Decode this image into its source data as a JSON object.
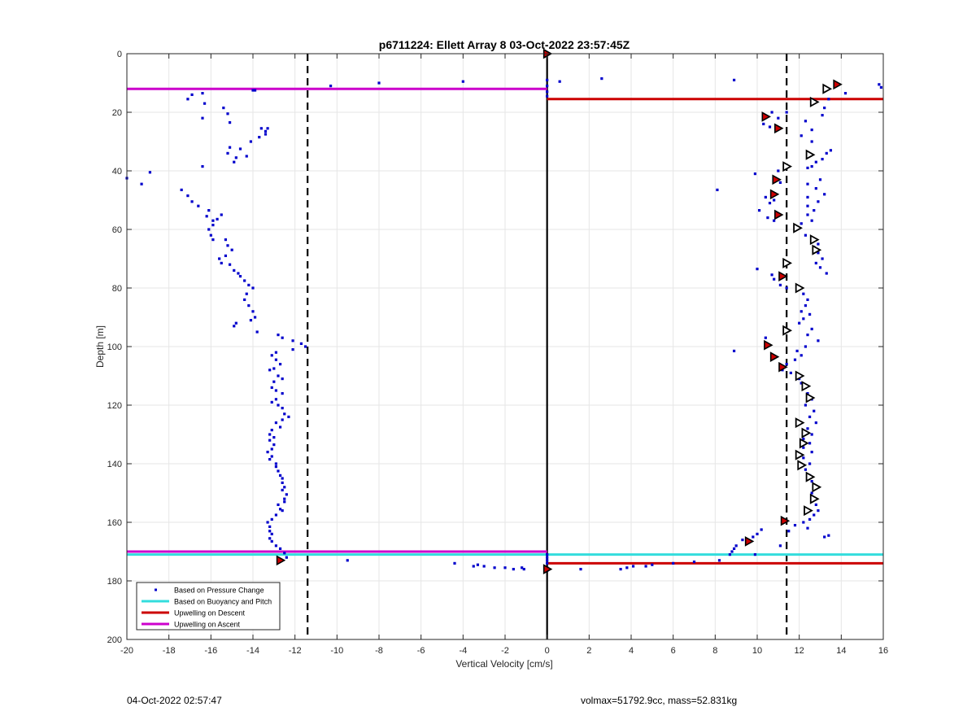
{
  "chart_data": {
    "type": "scatter",
    "title": "p6711224: Ellett Array 8 03-Oct-2022 23:57:45Z",
    "xlabel": "Vertical Velocity [cm/s]",
    "ylabel": "Depth [m]",
    "xlim": [
      -20,
      16
    ],
    "ylim": [
      0,
      200
    ],
    "y_reversed": true,
    "grid": true,
    "xticks": [
      -20,
      -18,
      -16,
      -14,
      -12,
      -10,
      -8,
      -6,
      -4,
      -2,
      0,
      2,
      4,
      6,
      8,
      10,
      12,
      14,
      16
    ],
    "yticks": [
      0,
      20,
      40,
      60,
      80,
      100,
      120,
      140,
      160,
      180,
      200
    ],
    "legend_position": "bottom-left",
    "legend": [
      {
        "label": "Based on Pressure Change",
        "marker": "dot",
        "color": "#0000cc"
      },
      {
        "label": "Based on Buoyancy and Pitch",
        "marker": "line",
        "color": "#33dddd"
      },
      {
        "label": "Upwelling on Descent",
        "marker": "line",
        "color": "#cc0000"
      },
      {
        "label": "Upwelling on Ascent",
        "marker": "line",
        "color": "#cc00cc"
      }
    ],
    "colors": {
      "pressure": "#0000cc",
      "buoyancy": "#33dddd",
      "descent": "#cc0000",
      "ascent": "#cc00cc",
      "dashed": "#000000",
      "grid": "#e6e6e6"
    },
    "vertical_dashed_lines_x": [
      -11.4,
      11.4
    ],
    "zero_line_x": 0,
    "horizontal_lines": [
      {
        "series": "ascent",
        "y": 12,
        "x_from": -20,
        "x_to": 0
      },
      {
        "series": "descent",
        "y": 15.5,
        "x_from": 0,
        "x_to": 16
      },
      {
        "series": "ascent",
        "y": 170,
        "x_from": -20,
        "x_to": 0
      },
      {
        "series": "buoyancy",
        "y": 171,
        "x_from": -20,
        "x_to": 0
      },
      {
        "series": "buoyancy",
        "y": 171,
        "x_from": 0,
        "x_to": 16
      },
      {
        "series": "descent",
        "y": 174,
        "x_from": 0,
        "x_to": 16
      }
    ],
    "pressure_points": [
      [
        -20,
        42.5
      ],
      [
        -19.3,
        44.5
      ],
      [
        -18.9,
        40.5
      ],
      [
        -17.4,
        46.5
      ],
      [
        -17.1,
        48.5
      ],
      [
        -16.9,
        50.5
      ],
      [
        -16.6,
        52
      ],
      [
        -17.1,
        15.5
      ],
      [
        -16.9,
        14
      ],
      [
        -16.4,
        13.5
      ],
      [
        -16.3,
        17
      ],
      [
        -16.4,
        22
      ],
      [
        -15.4,
        18.5
      ],
      [
        -15.2,
        20.5
      ],
      [
        -15.1,
        23.5
      ],
      [
        -15.1,
        32
      ],
      [
        -15.2,
        34
      ],
      [
        -14.8,
        35.5
      ],
      [
        -14.9,
        37
      ],
      [
        -14.6,
        32.5
      ],
      [
        -14.3,
        35
      ],
      [
        -14.1,
        30
      ],
      [
        -13.7,
        28.5
      ],
      [
        -13.6,
        25.5
      ],
      [
        -13.4,
        26.5
      ],
      [
        -13.4,
        27.5
      ],
      [
        -13.3,
        25.5
      ],
      [
        -14.0,
        12.5
      ],
      [
        -16.4,
        38.5
      ],
      [
        -16.1,
        53.5
      ],
      [
        -16.2,
        55.5
      ],
      [
        -15.9,
        57
      ],
      [
        -15.7,
        56.5
      ],
      [
        -15.5,
        55
      ],
      [
        -15.9,
        58.5
      ],
      [
        -16.1,
        60
      ],
      [
        -16.0,
        62
      ],
      [
        -15.9,
        63.5
      ],
      [
        -15.3,
        63.5
      ],
      [
        -15.2,
        65.5
      ],
      [
        -15.0,
        67
      ],
      [
        -15.3,
        69
      ],
      [
        -15.6,
        70
      ],
      [
        -15.5,
        71.5
      ],
      [
        -15.1,
        72
      ],
      [
        -14.9,
        74
      ],
      [
        -14.7,
        75
      ],
      [
        -14.6,
        76
      ],
      [
        -14.4,
        77.5
      ],
      [
        -14.2,
        79
      ],
      [
        -14.0,
        80
      ],
      [
        -14.3,
        82
      ],
      [
        -14.4,
        84
      ],
      [
        -14.2,
        86
      ],
      [
        -14.0,
        88
      ],
      [
        -13.9,
        90
      ],
      [
        -14.1,
        91
      ],
      [
        -14.8,
        92
      ],
      [
        -14.9,
        93
      ],
      [
        -13.8,
        95
      ],
      [
        -12.8,
        96
      ],
      [
        -12.6,
        97
      ],
      [
        -12.1,
        98
      ],
      [
        -11.7,
        99
      ],
      [
        -11.5,
        100
      ],
      [
        -12.1,
        101
      ],
      [
        -12.9,
        102
      ],
      [
        -13.1,
        103
      ],
      [
        -12.9,
        104.5
      ],
      [
        -12.7,
        106
      ],
      [
        -13.0,
        107.5
      ],
      [
        -13.2,
        108
      ],
      [
        -12.8,
        110
      ],
      [
        -12.6,
        111
      ],
      [
        -13.0,
        112
      ],
      [
        -13.1,
        114
      ],
      [
        -12.9,
        115
      ],
      [
        -12.6,
        116
      ],
      [
        -12.9,
        118
      ],
      [
        -13.1,
        119
      ],
      [
        -12.8,
        120
      ],
      [
        -12.6,
        121
      ],
      [
        -12.5,
        123
      ],
      [
        -12.3,
        124
      ],
      [
        -12.6,
        125
      ],
      [
        -12.9,
        126
      ],
      [
        -12.7,
        127.5
      ],
      [
        -13.1,
        128.5
      ],
      [
        -13.2,
        130
      ],
      [
        -13.0,
        131
      ],
      [
        -13.2,
        132
      ],
      [
        -13.0,
        133.5
      ],
      [
        -13.1,
        135
      ],
      [
        -13.3,
        136
      ],
      [
        -13.1,
        137.5
      ],
      [
        -13.2,
        138.5
      ],
      [
        -12.9,
        140
      ],
      [
        -12.9,
        141
      ],
      [
        -12.8,
        142.5
      ],
      [
        -12.7,
        144
      ],
      [
        -12.6,
        145
      ],
      [
        -12.6,
        146.5
      ],
      [
        -12.5,
        148
      ],
      [
        -12.6,
        149
      ],
      [
        -12.4,
        150.5
      ],
      [
        -12.5,
        152
      ],
      [
        -12.5,
        153
      ],
      [
        -12.8,
        154
      ],
      [
        -12.7,
        155.5
      ],
      [
        -12.6,
        156
      ],
      [
        -12.9,
        157.5
      ],
      [
        -13.1,
        159
      ],
      [
        -13.3,
        160
      ],
      [
        -13.2,
        161.5
      ],
      [
        -13.2,
        163
      ],
      [
        -13.1,
        164
      ],
      [
        -13.2,
        165.5
      ],
      [
        -13.1,
        166.5
      ],
      [
        -12.9,
        168
      ],
      [
        -12.7,
        169
      ],
      [
        -12.5,
        170.5
      ],
      [
        -12.4,
        172
      ],
      [
        -12.7,
        173
      ],
      [
        -10.3,
        11
      ],
      [
        -8.0,
        10
      ],
      [
        -4.0,
        9.5
      ],
      [
        -13.9,
        12.5
      ],
      [
        -9.5,
        173
      ],
      [
        -4.4,
        174
      ],
      [
        -3.5,
        175
      ],
      [
        -3.3,
        174.5
      ],
      [
        -3.0,
        175
      ],
      [
        -2.5,
        175.5
      ],
      [
        -2.0,
        175.5
      ],
      [
        -1.6,
        176
      ],
      [
        -1.2,
        175.5
      ],
      [
        -1.1,
        176
      ],
      [
        0,
        0
      ],
      [
        0,
        9
      ],
      [
        0,
        11
      ],
      [
        0,
        13
      ],
      [
        0,
        14.5
      ],
      [
        0,
        171
      ],
      [
        0,
        172
      ],
      [
        0,
        173
      ],
      [
        0,
        174
      ],
      [
        0,
        175.5
      ],
      [
        0,
        176.5
      ],
      [
        0.6,
        9.5
      ],
      [
        2.6,
        8.5
      ],
      [
        8.9,
        9
      ],
      [
        15.8,
        10.5
      ],
      [
        15.9,
        11.5
      ],
      [
        14.2,
        13.5
      ],
      [
        13.4,
        15.5
      ],
      [
        10.7,
        20
      ],
      [
        11.4,
        20
      ],
      [
        11.0,
        22
      ],
      [
        10.3,
        24
      ],
      [
        10.6,
        25
      ],
      [
        13.2,
        18.5
      ],
      [
        13.1,
        21
      ],
      [
        12.3,
        23
      ],
      [
        12.6,
        26
      ],
      [
        12.1,
        28
      ],
      [
        12.6,
        30
      ],
      [
        13.5,
        33
      ],
      [
        13.3,
        34
      ],
      [
        13.1,
        36
      ],
      [
        12.8,
        37
      ],
      [
        12.6,
        38.5
      ],
      [
        12.4,
        39
      ],
      [
        11.0,
        40
      ],
      [
        9.9,
        41
      ],
      [
        11.1,
        44
      ],
      [
        13.0,
        43
      ],
      [
        12.4,
        44.5
      ],
      [
        12.8,
        46
      ],
      [
        13.2,
        48
      ],
      [
        12.4,
        49
      ],
      [
        12.9,
        50.5
      ],
      [
        12.4,
        52
      ],
      [
        12.7,
        53.5
      ],
      [
        12.4,
        55
      ],
      [
        12.6,
        57
      ],
      [
        12.1,
        58
      ],
      [
        11.8,
        60
      ],
      [
        12.3,
        62
      ],
      [
        12.9,
        65
      ],
      [
        12.7,
        66
      ],
      [
        12.9,
        68
      ],
      [
        13.1,
        70
      ],
      [
        12.8,
        71.5
      ],
      [
        13.0,
        73
      ],
      [
        13.3,
        75
      ],
      [
        8.1,
        46.5
      ],
      [
        10.1,
        53.5
      ],
      [
        10.5,
        56
      ],
      [
        10.8,
        57
      ],
      [
        10.8,
        50
      ],
      [
        10.4,
        49
      ],
      [
        10.6,
        51
      ],
      [
        10.0,
        73.5
      ],
      [
        10.7,
        75.5
      ],
      [
        10.8,
        77
      ],
      [
        11.1,
        79
      ],
      [
        11.4,
        80
      ],
      [
        12.2,
        82
      ],
      [
        12.4,
        84
      ],
      [
        12.3,
        86
      ],
      [
        12.1,
        88
      ],
      [
        12.5,
        89
      ],
      [
        12.2,
        90.5
      ],
      [
        12.0,
        92
      ],
      [
        12.6,
        94
      ],
      [
        12.4,
        96
      ],
      [
        12.9,
        98
      ],
      [
        12.3,
        100
      ],
      [
        11.9,
        101.5
      ],
      [
        12.1,
        103
      ],
      [
        11.8,
        104.5
      ],
      [
        11.4,
        106
      ],
      [
        11.2,
        108
      ],
      [
        11.6,
        109
      ],
      [
        12.0,
        111
      ],
      [
        12.1,
        112.5
      ],
      [
        12.3,
        114
      ],
      [
        12.4,
        116
      ],
      [
        12.6,
        118
      ],
      [
        12.3,
        120
      ],
      [
        12.7,
        122
      ],
      [
        12.5,
        124
      ],
      [
        12.8,
        126
      ],
      [
        12.4,
        128
      ],
      [
        12.6,
        130
      ],
      [
        12.2,
        131.5
      ],
      [
        12.5,
        133
      ],
      [
        12.2,
        134.5
      ],
      [
        12.6,
        136
      ],
      [
        12.2,
        138
      ],
      [
        12.5,
        140
      ],
      [
        12.3,
        142
      ],
      [
        12.5,
        144
      ],
      [
        12.6,
        146
      ],
      [
        12.9,
        148
      ],
      [
        12.6,
        150
      ],
      [
        12.7,
        152
      ],
      [
        12.8,
        154
      ],
      [
        12.9,
        156
      ],
      [
        12.7,
        157.5
      ],
      [
        12.5,
        159
      ],
      [
        12.2,
        160
      ],
      [
        11.8,
        161
      ],
      [
        12.4,
        162
      ],
      [
        13.2,
        165
      ],
      [
        13.4,
        164.5
      ],
      [
        11.5,
        163
      ],
      [
        10.2,
        162.5
      ],
      [
        10.0,
        164
      ],
      [
        9.8,
        165
      ],
      [
        9.3,
        166
      ],
      [
        9.0,
        168
      ],
      [
        8.9,
        169
      ],
      [
        8.8,
        170
      ],
      [
        8.7,
        171
      ],
      [
        8.2,
        173
      ],
      [
        9.9,
        171
      ],
      [
        11.1,
        168
      ],
      [
        10.4,
        97
      ],
      [
        8.9,
        101.5
      ],
      [
        7.0,
        173.5
      ],
      [
        6.0,
        174
      ],
      [
        5.0,
        174.5
      ],
      [
        4.7,
        175
      ],
      [
        4.1,
        175
      ],
      [
        3.8,
        175.5
      ],
      [
        3.5,
        176
      ],
      [
        1.6,
        176
      ]
    ],
    "descent_markers_red": [
      [
        0,
        0
      ],
      [
        13.8,
        10.5
      ],
      [
        10.4,
        21.5
      ],
      [
        11.0,
        25.5
      ],
      [
        10.9,
        43
      ],
      [
        10.8,
        48
      ],
      [
        11.0,
        55
      ],
      [
        11.2,
        76
      ],
      [
        10.5,
        99.5
      ],
      [
        10.8,
        103.5
      ],
      [
        11.2,
        107
      ],
      [
        11.3,
        159.5
      ],
      [
        9.6,
        166.5
      ],
      [
        -12.7,
        173
      ],
      [
        0,
        176
      ]
    ],
    "descent_markers_open": [
      [
        13.3,
        12
      ],
      [
        12.7,
        16.5
      ],
      [
        12.5,
        34.5
      ],
      [
        11.4,
        38.5
      ],
      [
        11.9,
        59.5
      ],
      [
        12.7,
        63.5
      ],
      [
        12.8,
        67
      ],
      [
        11.4,
        71.5
      ],
      [
        12.0,
        80
      ],
      [
        11.4,
        94.5
      ],
      [
        12.0,
        110
      ],
      [
        12.3,
        113.5
      ],
      [
        12.5,
        117.5
      ],
      [
        12.0,
        126
      ],
      [
        12.3,
        129.5
      ],
      [
        12.2,
        133
      ],
      [
        12.0,
        137
      ],
      [
        12.1,
        140.5
      ],
      [
        12.5,
        144.5
      ],
      [
        12.8,
        148
      ],
      [
        12.7,
        152
      ],
      [
        12.4,
        156
      ]
    ]
  },
  "footer": {
    "timestamp": "04-Oct-2022 02:57:47",
    "stats": "volmax=51792.9cc, mass=52.831kg"
  }
}
